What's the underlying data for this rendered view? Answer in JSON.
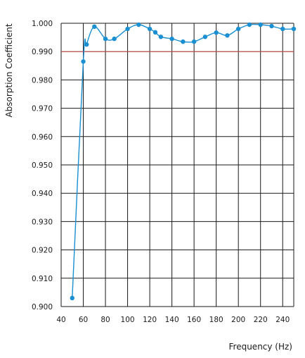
{
  "chart_data": {
    "type": "line",
    "title": "",
    "xlabel": "Frequency (Hz)",
    "ylabel": "Absorption Coefficient",
    "xlim": [
      40,
      250
    ],
    "ylim": [
      0.9,
      1.0
    ],
    "x_ticks": [
      "40",
      "60",
      "80",
      "100",
      "120",
      "140",
      "160",
      "180",
      "200",
      "220",
      "240"
    ],
    "x_tick_values": [
      40,
      60,
      80,
      100,
      120,
      140,
      160,
      180,
      200,
      220,
      240
    ],
    "y_ticks": [
      "0.900",
      "0.910",
      "0.920",
      "0.930",
      "0.940",
      "0.950",
      "0.960",
      "0.970",
      "0.980",
      "0.990",
      "1.000"
    ],
    "y_tick_values": [
      0.9,
      0.91,
      0.92,
      0.93,
      0.94,
      0.95,
      0.96,
      0.97,
      0.98,
      0.99,
      1.0
    ],
    "grid": true,
    "reference_line": {
      "y": 0.99,
      "color": "#d9534f"
    },
    "series": [
      {
        "color": "#1a8fd1",
        "x": [
          50,
          60,
          63,
          70,
          80,
          88,
          100,
          110,
          120,
          125,
          130,
          140,
          150,
          160,
          170,
          180,
          190,
          200,
          210,
          220,
          230,
          240,
          250
        ],
        "y": [
          0.903,
          0.9865,
          0.9925,
          0.9988,
          0.9945,
          0.9945,
          0.998,
          0.9995,
          0.998,
          0.9968,
          0.9952,
          0.9945,
          0.9935,
          0.9935,
          0.9952,
          0.9967,
          0.9957,
          0.998,
          0.9995,
          0.9995,
          0.999,
          0.998,
          0.998
        ]
      }
    ]
  }
}
